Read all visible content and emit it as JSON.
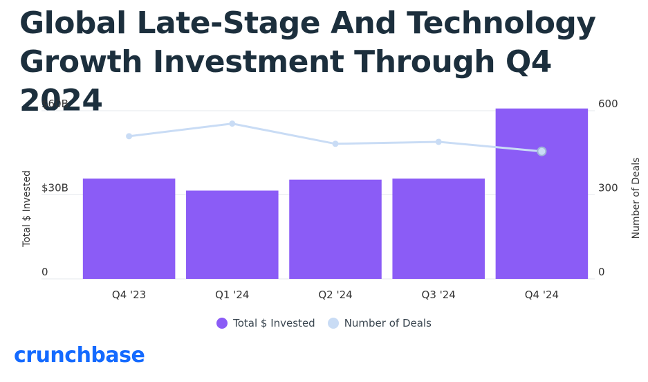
{
  "title": "Global Late-Stage And Technology Growth Investment Through Q4 2024",
  "brand": "crunchbase",
  "chart_data": {
    "type": "bar",
    "categories": [
      "Q4 '23",
      "Q1 '24",
      "Q2 '24",
      "Q3 '24",
      "Q4 '24"
    ],
    "series": [
      {
        "name": "Total $ Invested",
        "kind": "bar",
        "axis": "left",
        "color": "#8b5cf6",
        "values": [
          35.8,
          31.5,
          35.4,
          35.8,
          60.8
        ]
      },
      {
        "name": "Number of Deals",
        "kind": "line",
        "axis": "right",
        "color": "#c9dcf5",
        "values": [
          509,
          554,
          482,
          489,
          455
        ]
      }
    ],
    "y_left": {
      "label": "Total $ Invested",
      "ylim": [
        0,
        60
      ],
      "ticks": [
        0,
        30,
        60
      ],
      "tick_labels": [
        "0",
        "$30B",
        "$60B"
      ]
    },
    "y_right": {
      "label": "Number of Deals",
      "ylim": [
        0,
        600
      ],
      "ticks": [
        0,
        300,
        600
      ],
      "tick_labels": [
        "0",
        "300",
        "600"
      ]
    },
    "grid": true,
    "legend_position": "bottom-center"
  }
}
